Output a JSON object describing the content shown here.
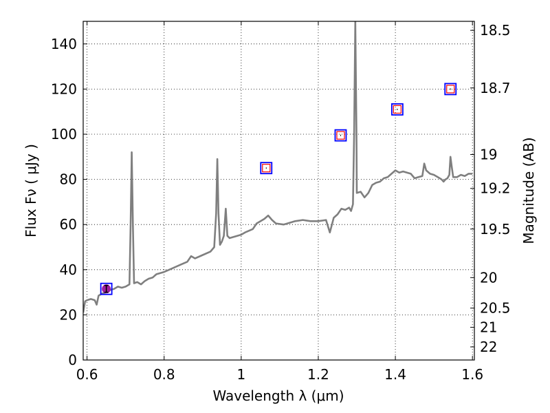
{
  "chart_data": {
    "type": "line",
    "xlabel": "Wavelength  λ (μm)",
    "ylabel": "Flux  Fν  ( μJy )",
    "ylabel_right": "Magnitude (AB)",
    "xlim": [
      0.59,
      1.605
    ],
    "ylim": [
      0,
      150
    ],
    "grid": true,
    "x_ticks": [
      0.6,
      0.8,
      1.0,
      1.2,
      1.4,
      1.6
    ],
    "x_tick_labels": [
      "0.6",
      "0.8",
      "1",
      "1.2",
      "1.4",
      "1.6"
    ],
    "y_ticks": [
      0,
      20,
      40,
      60,
      80,
      100,
      120,
      140
    ],
    "y_tick_labels": [
      "0",
      "20",
      "40",
      "60",
      "80",
      "100",
      "120",
      "140"
    ],
    "right_ticks": [
      {
        "flux": 146.0,
        "label": "18.5"
      },
      {
        "flux": 120.5,
        "label": "18.7"
      },
      {
        "flux": 91.0,
        "label": "19"
      },
      {
        "flux": 76.0,
        "label": "19.2"
      },
      {
        "flux": 58.0,
        "label": "19.5"
      },
      {
        "flux": 36.5,
        "label": "20"
      },
      {
        "flux": 23.0,
        "label": "20.5"
      },
      {
        "flux": 14.5,
        "label": "21"
      },
      {
        "flux": 5.8,
        "label": "22"
      }
    ],
    "series": [
      {
        "name": "spectrum",
        "color": "#7f7f7f",
        "points": [
          [
            0.59,
            21
          ],
          [
            0.595,
            26
          ],
          [
            0.6,
            26.5
          ],
          [
            0.61,
            27
          ],
          [
            0.62,
            26.5
          ],
          [
            0.625,
            24.5
          ],
          [
            0.63,
            28.5
          ],
          [
            0.64,
            29.5
          ],
          [
            0.65,
            30
          ],
          [
            0.66,
            31
          ],
          [
            0.67,
            31.5
          ],
          [
            0.68,
            32.5
          ],
          [
            0.69,
            32
          ],
          [
            0.7,
            32.5
          ],
          [
            0.71,
            33.5
          ],
          [
            0.713,
            60
          ],
          [
            0.716,
            92
          ],
          [
            0.719,
            60
          ],
          [
            0.722,
            34
          ],
          [
            0.73,
            34.5
          ],
          [
            0.74,
            33.5
          ],
          [
            0.75,
            35
          ],
          [
            0.76,
            36
          ],
          [
            0.77,
            36.5
          ],
          [
            0.78,
            38
          ],
          [
            0.79,
            38.5
          ],
          [
            0.8,
            39
          ],
          [
            0.82,
            40.5
          ],
          [
            0.84,
            42
          ],
          [
            0.86,
            43.5
          ],
          [
            0.87,
            46
          ],
          [
            0.88,
            45
          ],
          [
            0.9,
            46.5
          ],
          [
            0.92,
            48
          ],
          [
            0.93,
            50
          ],
          [
            0.935,
            65
          ],
          [
            0.938,
            89
          ],
          [
            0.941,
            65
          ],
          [
            0.945,
            51
          ],
          [
            0.95,
            52.5
          ],
          [
            0.955,
            55
          ],
          [
            0.96,
            67
          ],
          [
            0.964,
            55
          ],
          [
            0.97,
            54
          ],
          [
            0.98,
            54.5
          ],
          [
            1.0,
            55.5
          ],
          [
            1.01,
            56.5
          ],
          [
            1.03,
            58
          ],
          [
            1.04,
            60.5
          ],
          [
            1.06,
            62.5
          ],
          [
            1.07,
            64
          ],
          [
            1.08,
            62
          ],
          [
            1.09,
            60.5
          ],
          [
            1.11,
            60
          ],
          [
            1.12,
            60.5
          ],
          [
            1.14,
            61.5
          ],
          [
            1.16,
            62
          ],
          [
            1.18,
            61.5
          ],
          [
            1.2,
            61.5
          ],
          [
            1.22,
            62
          ],
          [
            1.23,
            56.5
          ],
          [
            1.24,
            63
          ],
          [
            1.25,
            64.5
          ],
          [
            1.26,
            67
          ],
          [
            1.27,
            66.5
          ],
          [
            1.28,
            67.5
          ],
          [
            1.285,
            66
          ],
          [
            1.29,
            69
          ],
          [
            1.293,
            100
          ],
          [
            1.296,
            150
          ],
          [
            1.299,
            100
          ],
          [
            1.3,
            74
          ],
          [
            1.31,
            74.5
          ],
          [
            1.32,
            72
          ],
          [
            1.33,
            74
          ],
          [
            1.34,
            77.5
          ],
          [
            1.35,
            78.5
          ],
          [
            1.36,
            79
          ],
          [
            1.37,
            80.5
          ],
          [
            1.38,
            81
          ],
          [
            1.39,
            82.5
          ],
          [
            1.4,
            84
          ],
          [
            1.41,
            83
          ],
          [
            1.42,
            83.5
          ],
          [
            1.43,
            83
          ],
          [
            1.44,
            82.5
          ],
          [
            1.45,
            80.5
          ],
          [
            1.46,
            81
          ],
          [
            1.47,
            81.5
          ],
          [
            1.475,
            87
          ],
          [
            1.48,
            84
          ],
          [
            1.49,
            82.5
          ],
          [
            1.5,
            82
          ],
          [
            1.51,
            81
          ],
          [
            1.52,
            80
          ],
          [
            1.525,
            79
          ],
          [
            1.53,
            80
          ],
          [
            1.535,
            80.5
          ],
          [
            1.54,
            82
          ],
          [
            1.543,
            90
          ],
          [
            1.546,
            86
          ],
          [
            1.55,
            81
          ],
          [
            1.56,
            81
          ],
          [
            1.57,
            82
          ],
          [
            1.58,
            81.5
          ],
          [
            1.59,
            82.5
          ],
          [
            1.6,
            82.5
          ]
        ]
      }
    ],
    "photometry": [
      {
        "x": 0.65,
        "y": 31.5,
        "yerr": 1.5,
        "marker": "circle"
      },
      {
        "x": 1.065,
        "y": 85,
        "marker": "square"
      },
      {
        "x": 1.258,
        "y": 99.5,
        "marker": "square"
      },
      {
        "x": 1.405,
        "y": 111,
        "marker": "square"
      },
      {
        "x": 1.543,
        "y": 120,
        "marker": "square"
      }
    ],
    "colors": {
      "spectrum": "#7f7f7f",
      "obs_square": "#0000ff",
      "model_square": "#ff0000",
      "point_fill": "#a01e9e",
      "errorbar": "#000000"
    }
  }
}
